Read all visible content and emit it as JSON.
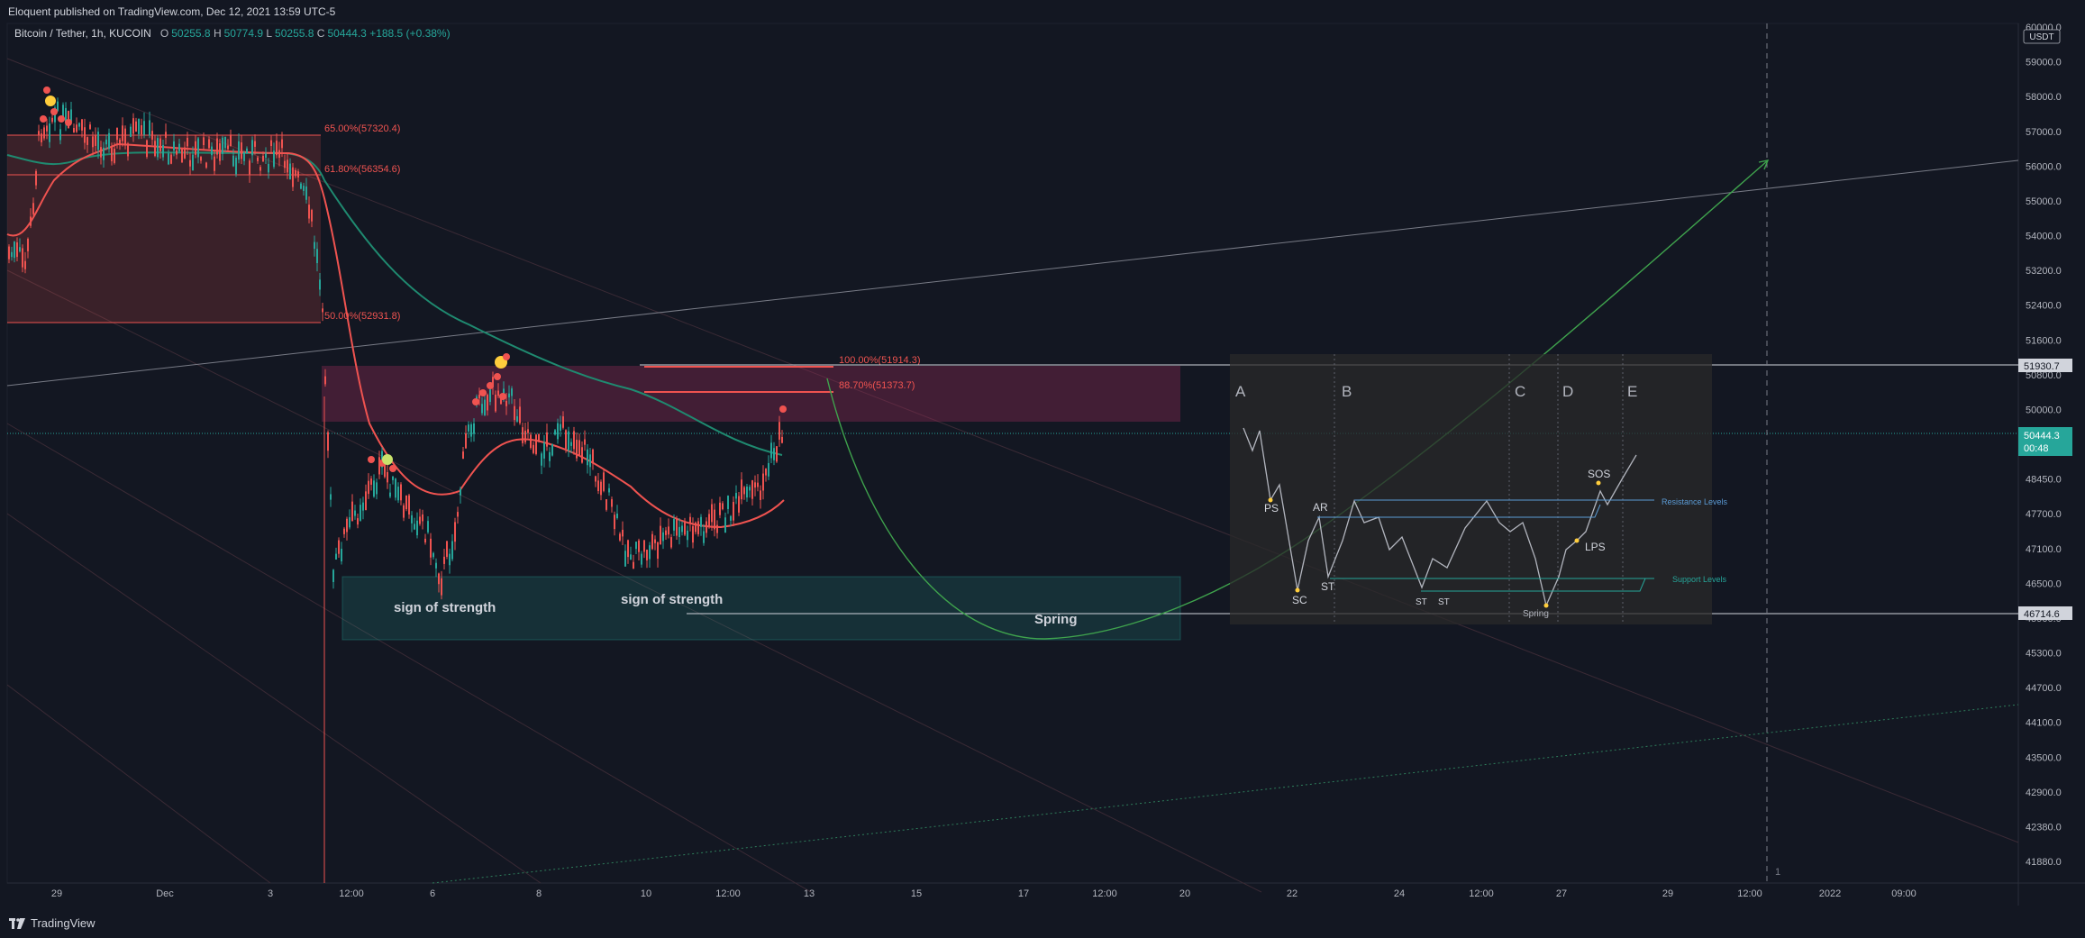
{
  "header": {
    "publisher": "Eloquent published on TradingView.com, Dec 12, 2021 13:59 UTC-5"
  },
  "legend": {
    "symbol": "Bitcoin / Tether, 1h, KUCOIN",
    "open_label": "O",
    "open": "50255.8",
    "high_label": "H",
    "high": "50774.9",
    "low_label": "L",
    "low": "50255.8",
    "close_label": "C",
    "close": "50444.3",
    "change": "+188.5 (+0.38%)"
  },
  "price_axis": {
    "currency": "USDT",
    "ticks": [
      "60000.0",
      "59000.0",
      "58000.0",
      "57000.0",
      "56000.0",
      "55000.0",
      "54000.0",
      "53200.0",
      "52400.0",
      "51600.0",
      "50800.0",
      "50000.0",
      "49200.0",
      "48450.0",
      "47700.0",
      "47100.0",
      "46500.0",
      "45900.0",
      "45300.0",
      "44700.0",
      "44100.0",
      "43500.0",
      "42900.0",
      "42380.0",
      "41880.0"
    ],
    "badge_resistance": "51930.7",
    "badge_last": "50444.3",
    "badge_countdown": "00:48",
    "badge_support": "46714.6",
    "colors": {
      "last": "#26a69a",
      "badge": "#d1d4dc"
    }
  },
  "time_axis": {
    "ticks": [
      "29",
      "Dec",
      "3",
      "12:00",
      "6",
      "8",
      "10",
      "12:00",
      "13",
      "15",
      "17",
      "12:00",
      "20",
      "22",
      "24",
      "12:00",
      "27",
      "29",
      "12:00",
      "2022",
      "09:00"
    ]
  },
  "fib_levels": [
    {
      "label": "65.00%(57320.4)"
    },
    {
      "label": "61.80%(56354.6)"
    },
    {
      "label": "50.00%(52931.8)"
    },
    {
      "label": "100.00%(51914.3)"
    },
    {
      "label": "88.70%(51373.7)"
    }
  ],
  "annotations": {
    "sos1": "sign of strength",
    "sos2": "sign of strength",
    "spring": "Spring"
  },
  "schematic": {
    "phases": [
      "A",
      "B",
      "C",
      "D",
      "E"
    ],
    "events": [
      "PS",
      "SC",
      "AR",
      "ST",
      "ST",
      "ST",
      "Spring",
      "LPS",
      "SOS"
    ],
    "resistance_label": "Resistance Levels",
    "support_label": "Support Levels",
    "colors": {
      "resistance": "#5b9bd5",
      "support": "#26a69a"
    }
  },
  "pane_marker": "1",
  "footer": {
    "brand": "TradingView"
  },
  "colors": {
    "up": "#26a69a",
    "down": "#ef5350",
    "bg": "#131722",
    "grid": "#1e222d"
  }
}
